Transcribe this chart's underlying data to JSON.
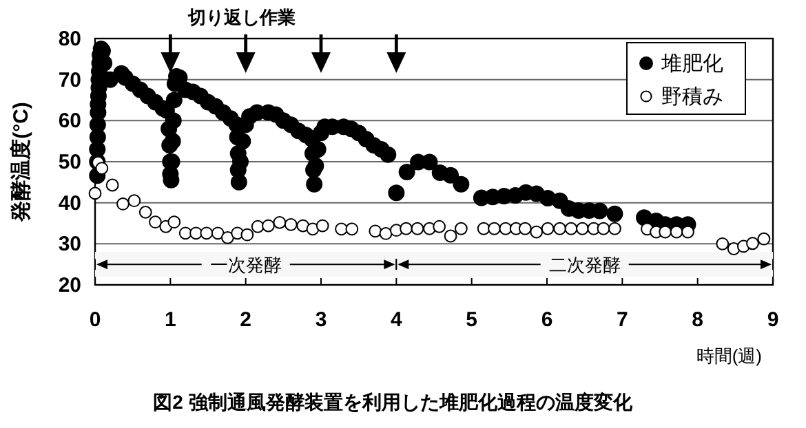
{
  "chart_data": {
    "type": "scatter",
    "title": "図2 強制通風発酵装置を利用した堆肥化過程の温度変化",
    "ylabel": "発酵温度(°C)",
    "xlabel": "時間(週)",
    "annotations": [
      "切り返し作業"
    ],
    "bands": [
      {
        "axis": "x",
        "from": 0,
        "to": 4,
        "label": "一次発酵"
      },
      {
        "axis": "x",
        "from": 4,
        "to": 9,
        "label": "二次発酵"
      }
    ],
    "xlim": [
      0,
      9
    ],
    "xticks": [
      0,
      1,
      2,
      3,
      4,
      5,
      6,
      7,
      8,
      9
    ],
    "ylim": [
      20,
      80
    ],
    "yticks": [
      20,
      30,
      40,
      50,
      60,
      70,
      80
    ],
    "grid": "y",
    "legend": "top right",
    "series": [
      {
        "name": "堆肥化",
        "color": "#000000",
        "marker": "circle",
        "x": [
          0.03,
          0.03,
          0.03,
          0.035,
          0.035,
          0.04,
          0.04,
          0.045,
          0.05,
          0.05,
          0.055,
          0.06,
          0.065,
          0.08,
          0.1,
          0.12,
          0.2,
          0.35,
          0.4,
          0.5,
          0.6,
          0.7,
          0.8,
          0.9,
          0.95,
          0.98,
          0.99,
          1.0,
          1.0,
          1.01,
          1.02,
          1.03,
          1.04,
          1.05,
          1.06,
          1.08,
          1.12,
          1.2,
          1.3,
          1.4,
          1.5,
          1.6,
          1.7,
          1.8,
          1.88,
          1.89,
          1.9,
          1.9,
          1.91,
          1.93,
          1.96,
          2.0,
          2.05,
          2.15,
          2.3,
          2.4,
          2.5,
          2.6,
          2.7,
          2.8,
          2.88,
          2.89,
          2.9,
          2.91,
          2.93,
          2.96,
          3.0,
          3.05,
          3.15,
          3.3,
          3.4,
          3.5,
          3.6,
          3.7,
          3.8,
          3.89,
          4.0,
          4.14,
          4.29,
          4.44,
          4.58,
          4.72,
          4.86,
          5.13,
          5.28,
          5.43,
          5.58,
          5.72,
          5.86,
          6.01,
          6.17,
          6.29,
          6.42,
          6.56,
          6.7,
          6.9,
          7.29,
          7.45,
          7.57,
          7.72,
          7.87
        ],
        "values": [
          46.6,
          50,
          53,
          56,
          59,
          62,
          64,
          66,
          68,
          70,
          72,
          74,
          76,
          77.5,
          77,
          74,
          70,
          71.5,
          70.5,
          69,
          67.5,
          66,
          64.5,
          63,
          62.5,
          58,
          54,
          50,
          47,
          45.5,
          50,
          55,
          60,
          65,
          69,
          70.8,
          70.5,
          67.5,
          67,
          66,
          64.5,
          63.5,
          62,
          60.5,
          59,
          56,
          52,
          48,
          45,
          50,
          55,
          59,
          61,
          62,
          62,
          61.5,
          60,
          59,
          57.5,
          56.5,
          55.5,
          52,
          48,
          44.5,
          49,
          53,
          57,
          58.5,
          58.5,
          58.5,
          58,
          57,
          55.5,
          54,
          53,
          51.7,
          42.4,
          47.5,
          49.9,
          49.9,
          47.3,
          46.7,
          44.5,
          41.2,
          41.4,
          41.6,
          41.8,
          42.5,
          42.2,
          41.1,
          40.5,
          38.6,
          38.1,
          38.1,
          38,
          37.3,
          36.4,
          35.6,
          34.7,
          34.7,
          34.7
        ]
      },
      {
        "name": "野積み",
        "color": "#ffffff",
        "marker": "circle",
        "x": [
          0.0,
          0.04,
          0.09,
          0.23,
          0.37,
          0.52,
          0.67,
          0.8,
          0.94,
          1.05,
          1.2,
          1.34,
          1.48,
          1.63,
          1.76,
          1.89,
          2.02,
          2.16,
          2.3,
          2.45,
          2.6,
          2.76,
          2.89,
          3.02,
          3.27,
          3.41,
          3.72,
          3.86,
          4.0,
          4.13,
          4.28,
          4.44,
          4.57,
          4.72,
          4.86,
          5.16,
          5.3,
          5.45,
          5.59,
          5.71,
          5.86,
          6.01,
          6.17,
          6.32,
          6.47,
          6.62,
          6.75,
          6.9,
          7.33,
          7.45,
          7.57,
          7.72,
          7.87,
          8.33,
          8.48,
          8.61,
          8.73,
          8.88
        ],
        "values": [
          42.3,
          49.8,
          48.4,
          44.3,
          39.7,
          40.5,
          37.7,
          35.3,
          34.2,
          35.3,
          32.6,
          32.6,
          32.6,
          32.6,
          31.5,
          32.6,
          32.2,
          34.2,
          34.4,
          35.2,
          34.7,
          34.4,
          33.6,
          34.4,
          33.6,
          33.6,
          33.1,
          32.5,
          33.3,
          33.7,
          33.7,
          33.7,
          34.2,
          31.9,
          33.7,
          33.7,
          33.7,
          33.7,
          33.7,
          33.7,
          32.9,
          33.7,
          33.7,
          33.7,
          33.7,
          33.7,
          33.7,
          33.7,
          33.6,
          32.9,
          32.9,
          32.9,
          32.9,
          30,
          28.8,
          29.4,
          30.1,
          31.2
        ]
      }
    ]
  }
}
